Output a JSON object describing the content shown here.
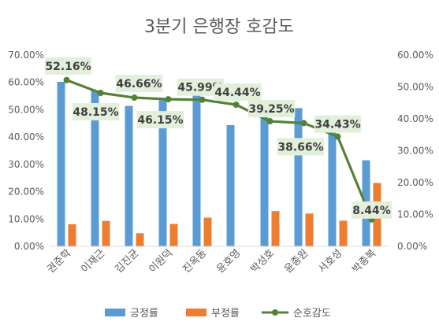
{
  "chart_data": {
    "type": "bar",
    "title": "3분기 은행장 호감도",
    "categories": [
      "권준학",
      "이재근",
      "김진균",
      "이원덕",
      "진옥동",
      "윤호영",
      "박성호",
      "윤종원",
      "서호성",
      "박종복"
    ],
    "series": [
      {
        "name": "긍정률",
        "type": "bar",
        "axis": "left",
        "color": "#5B9BD5",
        "values": [
          60.2,
          57.0,
          51.4,
          53.5,
          56.2,
          44.4,
          48.2,
          50.6,
          44.0,
          31.5
        ]
      },
      {
        "name": "부정률",
        "type": "bar",
        "axis": "left",
        "color": "#ED7D31",
        "values": [
          8.1,
          9.3,
          4.8,
          8.2,
          10.5,
          0,
          12.9,
          12.0,
          9.4,
          23.2
        ]
      },
      {
        "name": "순호감도",
        "type": "line",
        "axis": "right",
        "color": "#548235",
        "values": [
          52.16,
          48.15,
          46.66,
          46.15,
          45.99,
          44.44,
          39.25,
          38.66,
          34.43,
          8.44
        ],
        "labels": [
          "52.16%",
          "48.15%",
          "46.66%",
          "46.15%",
          "45.99%",
          "44.44%",
          "39.25%",
          "38.66%",
          "34.43%",
          "8.44%"
        ]
      }
    ],
    "y_left": {
      "ylim": [
        0,
        70
      ],
      "ticks": [
        0,
        10,
        20,
        30,
        40,
        50,
        60,
        70
      ],
      "tick_labels": [
        "0.00%",
        "10.00%",
        "20.00%",
        "30.00%",
        "40.00%",
        "50.00%",
        "60.00%",
        "70.00%"
      ]
    },
    "y_right": {
      "ylim": [
        0,
        60
      ],
      "ticks": [
        0,
        10,
        20,
        30,
        40,
        50,
        60
      ],
      "tick_labels": [
        "0.00%",
        "10.00%",
        "20.00%",
        "30.00%",
        "40.00%",
        "50.00%",
        "60.00%"
      ]
    },
    "grid": false,
    "legend_position": "bottom",
    "label_box_color": "#E2EFDA"
  }
}
